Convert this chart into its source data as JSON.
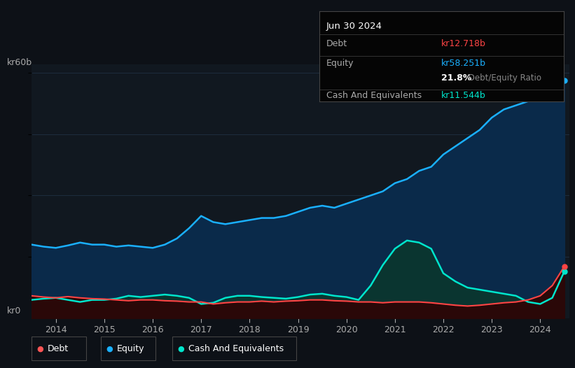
{
  "bg_color": "#0d1117",
  "plot_bg_color": "#111820",
  "axis_color": "#aaaaaa",
  "grid_color": "#1e2d3d",
  "info_box": {
    "date": "Jun 30 2024",
    "debt_label": "Debt",
    "debt_value": "kr12.718b",
    "debt_color": "#ff4444",
    "equity_label": "Equity",
    "equity_value": "kr58.251b",
    "equity_color": "#1ab0ff",
    "ratio_text": "21.8%",
    "ratio_label": " Debt/Equity Ratio",
    "ratio_color": "#888888",
    "cash_label": "Cash And Equivalents",
    "cash_value": "kr11.544b",
    "cash_color": "#00e5cc"
  },
  "ylabel_top": "kr60b",
  "ylabel_bottom": "kr0",
  "legend": [
    {
      "label": "Debt",
      "color": "#ff5555"
    },
    {
      "label": "Equity",
      "color": "#1ab0ff"
    },
    {
      "label": "Cash And Equivalents",
      "color": "#00e5cc"
    }
  ],
  "years": [
    2013.5,
    2013.75,
    2014.0,
    2014.25,
    2014.5,
    2014.75,
    2015.0,
    2015.25,
    2015.5,
    2015.75,
    2016.0,
    2016.25,
    2016.5,
    2016.75,
    2017.0,
    2017.25,
    2017.5,
    2017.75,
    2018.0,
    2018.25,
    2018.5,
    2018.75,
    2019.0,
    2019.25,
    2019.5,
    2019.75,
    2020.0,
    2020.25,
    2020.5,
    2020.75,
    2021.0,
    2021.25,
    2021.5,
    2021.75,
    2022.0,
    2022.25,
    2022.5,
    2022.75,
    2023.0,
    2023.25,
    2023.5,
    2023.75,
    2024.0,
    2024.25,
    2024.5
  ],
  "equity": [
    18,
    17.5,
    17.2,
    17.8,
    18.5,
    18,
    18,
    17.5,
    17.8,
    17.5,
    17.2,
    18,
    19.5,
    22,
    25,
    23.5,
    23,
    23.5,
    24,
    24.5,
    24.5,
    25,
    26,
    27,
    27.5,
    27,
    28,
    29,
    30,
    31,
    33,
    34,
    36,
    37,
    40,
    42,
    44,
    46,
    49,
    51,
    52,
    53,
    55,
    57,
    58
  ],
  "debt": [
    5.5,
    5.2,
    5.0,
    5.3,
    5.0,
    4.8,
    4.7,
    4.5,
    4.3,
    4.5,
    4.5,
    4.3,
    4.2,
    4.0,
    4.0,
    3.5,
    3.8,
    4.0,
    4.0,
    4.2,
    4.0,
    4.2,
    4.3,
    4.5,
    4.5,
    4.3,
    4.2,
    4.0,
    4.0,
    3.8,
    4.0,
    4.0,
    4.0,
    3.8,
    3.5,
    3.2,
    3.0,
    3.2,
    3.5,
    3.8,
    4.0,
    4.5,
    5.5,
    8.0,
    12.7
  ],
  "cash": [
    4.5,
    4.8,
    5.0,
    4.5,
    4.0,
    4.5,
    4.5,
    4.8,
    5.5,
    5.2,
    5.5,
    5.8,
    5.5,
    5.0,
    3.5,
    3.8,
    5.0,
    5.5,
    5.5,
    5.2,
    5.0,
    4.8,
    5.2,
    5.8,
    6.0,
    5.5,
    5.2,
    4.5,
    8.0,
    13.0,
    17.0,
    19.0,
    18.5,
    17.0,
    11.0,
    9.0,
    7.5,
    7.0,
    6.5,
    6.0,
    5.5,
    4.0,
    3.5,
    5.0,
    11.5
  ],
  "xlim": [
    2013.5,
    2024.6
  ],
  "ylim": [
    0,
    62
  ],
  "xticks": [
    2014,
    2015,
    2016,
    2017,
    2018,
    2019,
    2020,
    2021,
    2022,
    2023,
    2024
  ],
  "equity_fill_color": "#0a2a4a",
  "equity_line_color": "#1ab0ff",
  "cash_fill_color": "#0a3530",
  "cash_line_color": "#00e5cc",
  "debt_fill_color": "#2a0808",
  "debt_line_color": "#ff4444"
}
